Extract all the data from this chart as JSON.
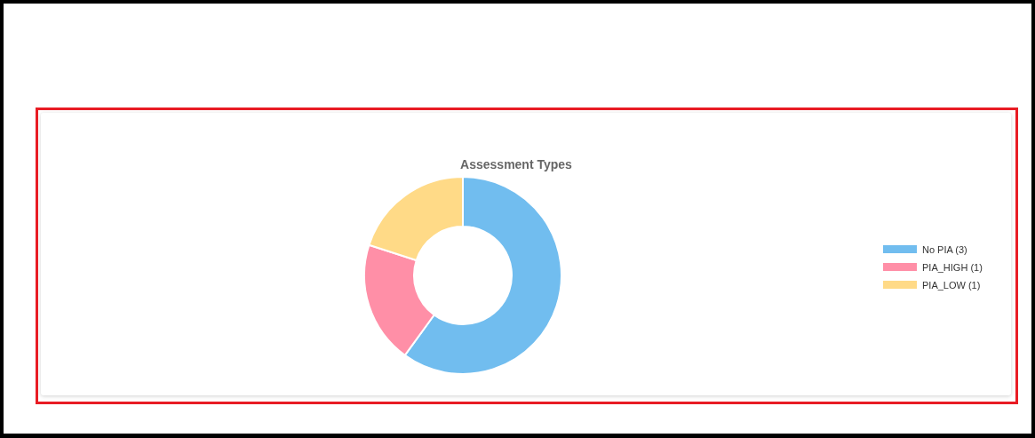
{
  "chart_data": {
    "type": "donut",
    "title": "Assessment Types",
    "categories": [
      "No PIA (3)",
      "PIA_HIGH (1)",
      "PIA_LOW (1)"
    ],
    "values": [
      3,
      1,
      1
    ],
    "colors": [
      "#71bdef",
      "#ff8fa7",
      "#ffda87"
    ],
    "legend": "right"
  }
}
